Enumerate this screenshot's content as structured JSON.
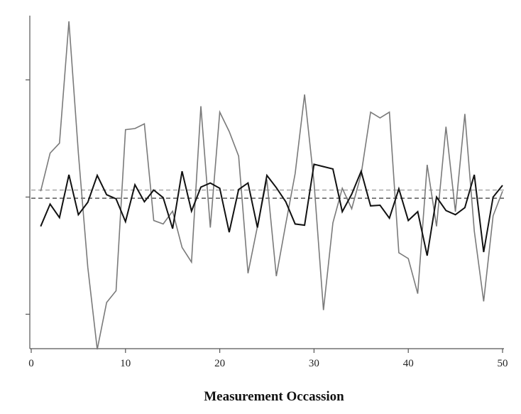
{
  "chart_data": {
    "type": "line",
    "title": "",
    "xlabel": "Measurement Occassion",
    "ylabel": "",
    "xlim": [
      0,
      50
    ],
    "ylim": [
      -2.6,
      3.0
    ],
    "x_ticks": [
      "0",
      "10",
      "20",
      "30",
      "40",
      "50"
    ],
    "y_ticks": [
      -2,
      0,
      2
    ],
    "grid": false,
    "x": [
      1,
      2,
      3,
      4,
      5,
      6,
      7,
      8,
      9,
      10,
      11,
      12,
      13,
      14,
      15,
      16,
      17,
      18,
      19,
      20,
      21,
      22,
      23,
      24,
      25,
      26,
      27,
      28,
      29,
      30,
      31,
      32,
      33,
      34,
      35,
      36,
      37,
      38,
      39,
      40,
      41,
      42,
      43,
      44,
      45,
      46,
      47,
      48,
      49,
      50
    ],
    "series": [
      {
        "color": "#7a7a7a",
        "width": 1.6,
        "values": [
          0.1,
          0.75,
          0.92,
          3.0,
          0.75,
          -1.2,
          -2.6,
          -1.8,
          -1.6,
          1.15,
          1.17,
          1.25,
          -0.4,
          -0.46,
          -0.24,
          -0.86,
          -1.11,
          1.55,
          -0.52,
          1.45,
          1.12,
          0.7,
          -1.3,
          -0.5,
          0.3,
          -1.35,
          -0.46,
          0.4,
          1.75,
          0.25,
          -1.93,
          -0.44,
          0.15,
          -0.2,
          0.39,
          1.45,
          1.35,
          1.45,
          -0.95,
          -1.05,
          -1.65,
          0.55,
          -0.5,
          1.2,
          -0.25,
          1.42,
          -0.58,
          -1.78,
          -0.32,
          0.1
        ]
      },
      {
        "color": "#111111",
        "width": 2.0,
        "values": [
          -0.5,
          -0.12,
          -0.35,
          0.38,
          -0.3,
          -0.09,
          0.37,
          0.04,
          -0.03,
          -0.42,
          0.21,
          -0.08,
          0.12,
          -0.01,
          -0.54,
          0.44,
          -0.24,
          0.17,
          0.24,
          0.15,
          -0.6,
          0.13,
          0.24,
          -0.52,
          0.37,
          0.16,
          -0.08,
          -0.46,
          -0.48,
          0.56,
          0.52,
          0.48,
          -0.25,
          0.05,
          0.44,
          -0.15,
          -0.14,
          -0.36,
          0.14,
          -0.4,
          -0.25,
          -1.0,
          0.0,
          -0.23,
          -0.3,
          -0.18,
          0.38,
          -0.94,
          0.0,
          0.2
        ]
      }
    ],
    "reference_lines": [
      {
        "y": 0.12,
        "color": "#9a9a9a",
        "style": "dashed"
      },
      {
        "y": -0.02,
        "color": "#333333",
        "style": "dashed"
      }
    ]
  }
}
